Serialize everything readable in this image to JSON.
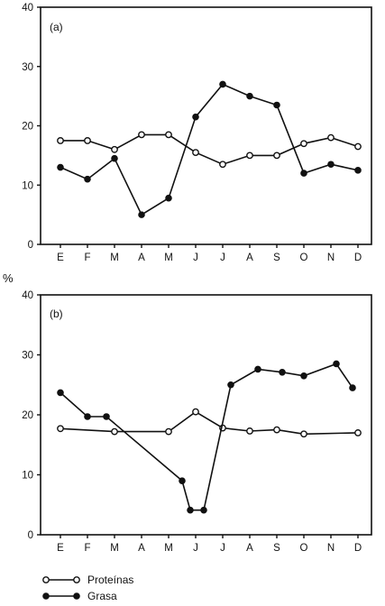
{
  "chart_data": [
    {
      "type": "line",
      "panel_label": "(a)",
      "categories": [
        "E",
        "F",
        "M",
        "A",
        "M",
        "J",
        "J",
        "A",
        "S",
        "O",
        "N",
        "D"
      ],
      "ylim": [
        0,
        40
      ],
      "yticks": [
        0,
        10,
        20,
        30,
        40
      ],
      "series": [
        {
          "name": "Proteínas",
          "marker": "open-circle",
          "x": [
            0,
            1,
            2,
            3,
            4,
            5,
            6,
            7,
            8,
            9,
            10,
            11
          ],
          "values": [
            17.5,
            17.5,
            16,
            18.5,
            18.5,
            15.5,
            13.5,
            15,
            15,
            17,
            18,
            16.5
          ]
        },
        {
          "name": "Grasa",
          "marker": "filled-circle",
          "x": [
            0,
            1,
            2,
            3,
            4,
            5,
            6,
            7,
            8,
            9,
            10,
            11
          ],
          "values": [
            13,
            11,
            14.5,
            5,
            7.8,
            21.5,
            27,
            25,
            23.5,
            12,
            13.5,
            12.5
          ]
        }
      ]
    },
    {
      "type": "line",
      "panel_label": "(b)",
      "categories": [
        "E",
        "F",
        "M",
        "A",
        "M",
        "J",
        "J",
        "A",
        "S",
        "O",
        "N",
        "D"
      ],
      "ylim": [
        0,
        40
      ],
      "yticks": [
        0,
        10,
        20,
        30,
        40
      ],
      "series": [
        {
          "name": "Proteínas",
          "marker": "open-circle",
          "x": [
            0,
            2,
            4,
            5,
            6,
            7,
            8,
            9,
            11
          ],
          "values": [
            17.7,
            17.2,
            17.2,
            20.5,
            17.8,
            17.3,
            17.5,
            16.8,
            17
          ]
        },
        {
          "name": "Grasa",
          "marker": "filled-circle",
          "x": [
            0,
            1,
            1.7,
            4.5,
            4.8,
            5.3,
            6.3,
            7.3,
            8.2,
            9,
            10.2,
            10.8
          ],
          "values": [
            23.7,
            19.7,
            19.7,
            9,
            4.1,
            4.1,
            25,
            27.6,
            27.1,
            26.5,
            28.5,
            24.5
          ]
        }
      ]
    }
  ],
  "y_unit": "%",
  "legend": [
    {
      "label": "Proteínas",
      "marker": "open-circle"
    },
    {
      "label": "Grasa",
      "marker": "filled-circle"
    }
  ]
}
